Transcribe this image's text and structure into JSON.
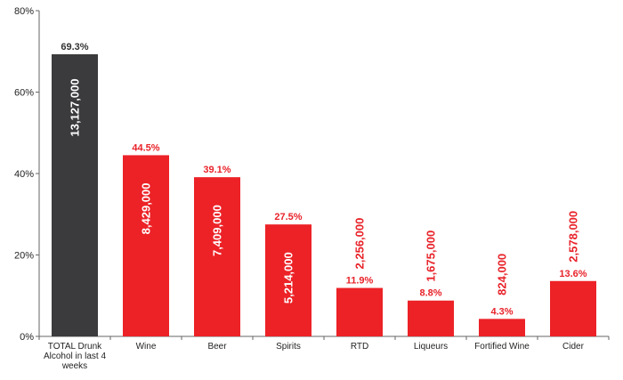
{
  "chart_data": {
    "type": "bar",
    "title": "",
    "xlabel": "",
    "ylabel": "",
    "ylim": [
      0,
      80
    ],
    "yticks": [
      "0%",
      "20%",
      "40%",
      "60%",
      "80%"
    ],
    "grid": false,
    "categories": [
      "TOTAL Drunk Alcohol in last 4 weeks",
      "Wine",
      "Beer",
      "Spirits",
      "RTD",
      "Liqueurs",
      "Fortified Wine",
      "Cider"
    ],
    "category_lines": [
      [
        "TOTAL Drunk",
        "Alcohol in last 4",
        "weeks"
      ],
      [
        "Wine"
      ],
      [
        "Beer"
      ],
      [
        "Spirits"
      ],
      [
        "RTD"
      ],
      [
        "Liqueurs"
      ],
      [
        "Fortified Wine"
      ],
      [
        "Cider"
      ]
    ],
    "values": [
      69.3,
      44.5,
      39.1,
      27.5,
      11.9,
      8.8,
      4.3,
      13.6
    ],
    "percent_labels": [
      "69.3%",
      "44.5%",
      "39.1%",
      "27.5%",
      "11.9%",
      "8.8%",
      "4.3%",
      "13.6%"
    ],
    "counts": [
      13127000,
      8429000,
      7409000,
      5214000,
      2256000,
      1675000,
      824000,
      2578000
    ],
    "count_labels": [
      "13,127,000",
      "8,429,000",
      "7,409,000",
      "5,214,000",
      "2,256,000",
      "1,675,000",
      "824,000",
      "2,578,000"
    ],
    "count_placement": [
      "inside",
      "inside",
      "inside",
      "inside",
      "above",
      "above",
      "above",
      "above"
    ],
    "colors": {
      "total_bar": "#3b3a3c",
      "bar": "#ec2227",
      "label_on_dark": "#ffffff",
      "label_red": "#e8232a",
      "label_total": "#333333",
      "axis": "#666666"
    }
  }
}
